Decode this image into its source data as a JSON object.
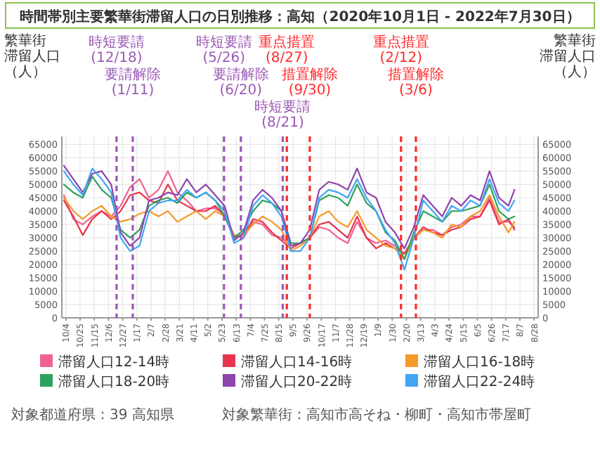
{
  "chart_data": {
    "type": "line",
    "title": "時間帯別主要繁華街滞留人口の日別推移：高知（2020年10月1日 - 2022年7月30日）",
    "ylabel": "繁華街滞留人口（人）",
    "y2label": "繁華街滞留人口（人）",
    "x": [
      "2020-10-01",
      "2020-10-15",
      "2020-10-29",
      "2020-11-12",
      "2020-11-26",
      "2020-12-10",
      "2020-12-24",
      "2021-01-07",
      "2021-01-21",
      "2021-02-04",
      "2021-02-18",
      "2021-03-04",
      "2021-03-18",
      "2021-04-01",
      "2021-04-15",
      "2021-04-29",
      "2021-05-13",
      "2021-05-27",
      "2021-06-10",
      "2021-06-24",
      "2021-07-08",
      "2021-07-22",
      "2021-08-05",
      "2021-08-19",
      "2021-09-02",
      "2021-09-16",
      "2021-09-30",
      "2021-10-14",
      "2021-10-28",
      "2021-11-11",
      "2021-11-25",
      "2021-12-09",
      "2021-12-23",
      "2022-01-06",
      "2022-01-20",
      "2022-02-03",
      "2022-02-17",
      "2022-03-03",
      "2022-03-17",
      "2022-03-31",
      "2022-04-14",
      "2022-04-28",
      "2022-05-12",
      "2022-05-26",
      "2022-06-09",
      "2022-06-23",
      "2022-07-07",
      "2022-07-21",
      "2022-07-30"
    ],
    "series": [
      {
        "name": "滞留人口12-14時",
        "color": "#f06292",
        "values": [
          46000,
          37000,
          35000,
          38000,
          40000,
          38000,
          42000,
          49000,
          52000,
          45000,
          48000,
          55000,
          47000,
          44000,
          40000,
          41000,
          41000,
          39000,
          31000,
          30000,
          36000,
          35000,
          31000,
          30000,
          27000,
          28000,
          30000,
          34000,
          33000,
          30000,
          28000,
          36000,
          30000,
          28000,
          29000,
          27000,
          24000,
          30000,
          33000,
          33000,
          31000,
          34000,
          35000,
          38000,
          38000,
          45000,
          36000,
          36000,
          34000
        ]
      },
      {
        "name": "滞留人口14-16時",
        "color": "#e8344e",
        "values": [
          44000,
          38000,
          31000,
          37000,
          40000,
          37000,
          40000,
          46000,
          47000,
          44000,
          43000,
          50000,
          44000,
          42000,
          40000,
          40000,
          42000,
          38000,
          30000,
          31000,
          37000,
          36000,
          32000,
          29000,
          26000,
          28000,
          30000,
          35000,
          36000,
          33000,
          30000,
          38000,
          30000,
          26000,
          28000,
          26000,
          24000,
          30000,
          34000,
          32000,
          31000,
          33000,
          34000,
          37000,
          38000,
          44000,
          35000,
          37000,
          33000
        ]
      },
      {
        "name": "滞留人口16-18時",
        "color": "#f59a2a",
        "values": [
          45000,
          40000,
          37000,
          40000,
          42000,
          38000,
          36000,
          37000,
          39000,
          40000,
          38000,
          40000,
          36000,
          38000,
          40000,
          37000,
          40000,
          38000,
          31000,
          31000,
          35000,
          38000,
          36000,
          33000,
          25000,
          27000,
          30000,
          38000,
          40000,
          36000,
          34000,
          40000,
          33000,
          30000,
          27000,
          26000,
          22000,
          30000,
          33000,
          32000,
          30000,
          35000,
          34000,
          38000,
          40000,
          46000,
          38000,
          32000,
          36000
        ]
      },
      {
        "name": "滞留人口18-20時",
        "color": "#2ca25f",
        "values": [
          50000,
          47000,
          45000,
          53000,
          48000,
          45000,
          33000,
          30000,
          33000,
          42000,
          44000,
          45000,
          43000,
          47000,
          45000,
          47000,
          44000,
          38000,
          30000,
          33000,
          40000,
          44000,
          43000,
          40000,
          28000,
          28000,
          30000,
          44000,
          46000,
          45000,
          42000,
          50000,
          43000,
          40000,
          32000,
          29000,
          22000,
          32000,
          40000,
          38000,
          36000,
          40000,
          40000,
          41000,
          42000,
          50000,
          40000,
          37000,
          38000
        ]
      },
      {
        "name": "滞留人口20-22時",
        "color": "#8e44ad",
        "values": [
          57000,
          52000,
          47000,
          54000,
          55000,
          50000,
          32000,
          27000,
          30000,
          44000,
          45000,
          47000,
          46000,
          52000,
          47000,
          50000,
          46000,
          42000,
          29000,
          32000,
          44000,
          48000,
          45000,
          40000,
          27000,
          28000,
          33000,
          48000,
          51000,
          50000,
          48000,
          56000,
          47000,
          45000,
          36000,
          32000,
          26000,
          34000,
          46000,
          42000,
          38000,
          45000,
          42000,
          46000,
          44000,
          55000,
          45000,
          42000,
          48000
        ]
      },
      {
        "name": "滞留人口22-24時",
        "color": "#42a5f5",
        "values": [
          55000,
          50000,
          46000,
          56000,
          52000,
          47000,
          30000,
          25000,
          27000,
          40000,
          43000,
          44000,
          44000,
          48000,
          45000,
          47000,
          44000,
          40000,
          28000,
          30000,
          42000,
          46000,
          43000,
          38000,
          25000,
          25000,
          30000,
          45000,
          48000,
          47000,
          45000,
          52000,
          45000,
          40000,
          33000,
          28000,
          18000,
          30000,
          44000,
          40000,
          36000,
          42000,
          40000,
          44000,
          42000,
          52000,
          43000,
          40000,
          44000
        ]
      }
    ],
    "xlim": [
      "2020-09-28",
      "2022-09-03"
    ],
    "xticks": [
      {
        "value": "2020-10-04",
        "label": "10/4"
      },
      {
        "value": "2020-10-25",
        "label": "10/25"
      },
      {
        "value": "2020-11-15",
        "label": "11/15"
      },
      {
        "value": "2020-12-06",
        "label": "12/6"
      },
      {
        "value": "2020-12-27",
        "label": "12/27"
      },
      {
        "value": "2021-01-17",
        "label": "1/17"
      },
      {
        "value": "2021-02-07",
        "label": "2/7"
      },
      {
        "value": "2021-02-28",
        "label": "2/28"
      },
      {
        "value": "2021-03-21",
        "label": "3/21"
      },
      {
        "value": "2021-04-11",
        "label": "4/11"
      },
      {
        "value": "2021-05-02",
        "label": "5/2"
      },
      {
        "value": "2021-05-23",
        "label": "5/23"
      },
      {
        "value": "2021-06-13",
        "label": "6/13"
      },
      {
        "value": "2021-07-04",
        "label": "7/4"
      },
      {
        "value": "2021-07-25",
        "label": "7/25"
      },
      {
        "value": "2021-08-15",
        "label": "8/15"
      },
      {
        "value": "2021-09-05",
        "label": "9/5"
      },
      {
        "value": "2021-09-26",
        "label": "9/26"
      },
      {
        "value": "2021-10-17",
        "label": "10/17"
      },
      {
        "value": "2021-11-07",
        "label": "11/7"
      },
      {
        "value": "2021-11-28",
        "label": "11/28"
      },
      {
        "value": "2021-12-19",
        "label": "12/19"
      },
      {
        "value": "2022-01-09",
        "label": "1/9"
      },
      {
        "value": "2022-01-30",
        "label": "1/30"
      },
      {
        "value": "2022-02-20",
        "label": "2/20"
      },
      {
        "value": "2022-03-13",
        "label": "3/13"
      },
      {
        "value": "2022-04-03",
        "label": "4/3"
      },
      {
        "value": "2022-04-24",
        "label": "4/24"
      },
      {
        "value": "2022-05-15",
        "label": "5/15"
      },
      {
        "value": "2022-06-05",
        "label": "6/5"
      },
      {
        "value": "2022-06-26",
        "label": "6/26"
      },
      {
        "value": "2022-07-17",
        "label": "7/17"
      },
      {
        "value": "2022-08-07",
        "label": "8/7"
      },
      {
        "value": "2022-08-28",
        "label": "8/28"
      }
    ],
    "ylim": [
      0,
      68000
    ],
    "yticks": [
      0,
      5000,
      10000,
      15000,
      20000,
      25000,
      30000,
      35000,
      40000,
      45000,
      50000,
      55000,
      60000,
      65000
    ],
    "y2lim": [
      0,
      68000
    ],
    "y2ticks": [
      0,
      5000,
      10000,
      15000,
      20000,
      25000,
      30000,
      35000,
      40000,
      45000,
      50000,
      55000,
      60000,
      65000
    ],
    "ref_lines": [
      {
        "axis": "x",
        "value": "2020-12-18",
        "label": "時短要請(12/18)",
        "color": "#9b59b6",
        "line_style": "dashed"
      },
      {
        "axis": "x",
        "value": "2021-01-11",
        "label": "要請解除(1/11)",
        "color": "#9b59b6",
        "line_style": "dashed"
      },
      {
        "axis": "x",
        "value": "2021-05-26",
        "label": "時短要請(5/26)",
        "color": "#9b59b6",
        "line_style": "dashed"
      },
      {
        "axis": "x",
        "value": "2021-06-20",
        "label": "要請解除(6/20)",
        "color": "#9b59b6",
        "line_style": "dashed"
      },
      {
        "axis": "x",
        "value": "2021-08-21",
        "label": "時短要請(8/21)",
        "color": "#9b59b6",
        "line_style": "dashed"
      },
      {
        "axis": "x",
        "value": "2021-08-27",
        "label": "重点措置(8/27)",
        "color": "#ff2a2a",
        "line_style": "dashed"
      },
      {
        "axis": "x",
        "value": "2021-09-30",
        "label": "措置解除(9/30)",
        "color": "#ff2a2a",
        "line_style": "dashed"
      },
      {
        "axis": "x",
        "value": "2022-02-12",
        "label": "重点措置(2/12)",
        "color": "#ff2a2a",
        "line_style": "dashed"
      },
      {
        "axis": "x",
        "value": "2022-03-06",
        "label": "措置解除(3/6)",
        "color": "#ff2a2a",
        "line_style": "dashed"
      }
    ],
    "grid": true,
    "legend": "bottom",
    "annotations": [
      "対象都道府県：39 高知県",
      "対象繁華街：高知市高そね・柳町・高知市帯屋町"
    ]
  }
}
